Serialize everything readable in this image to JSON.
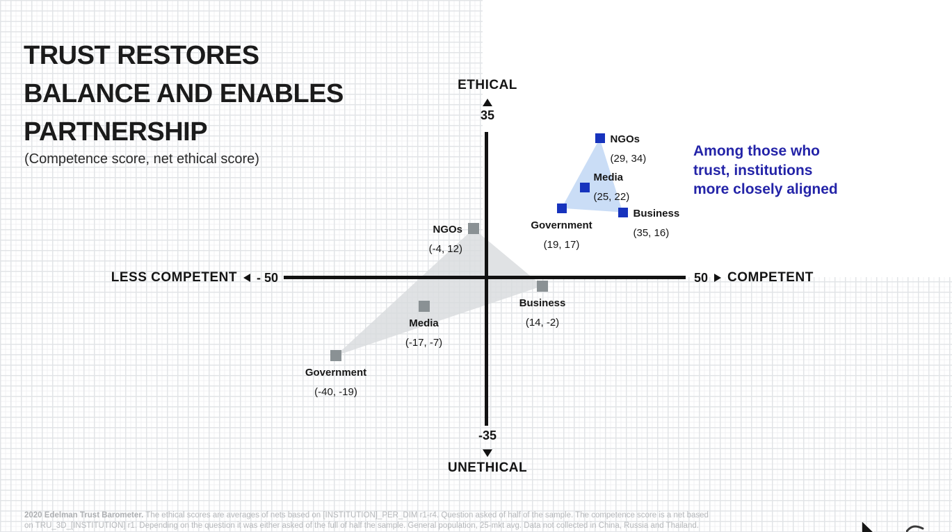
{
  "slide": {
    "title_lines": [
      "TRUST RESTORES",
      "BALANCE AND ENABLES",
      "PARTNERSHIP"
    ],
    "subtitle": "(Competence score, net ethical score)",
    "annotation": "Among those who\ntrust, institutions\nmore closely aligned",
    "footnote": {
      "bold_lead": "2020 Edelman Trust Barometer.",
      "line1_rest": " The ethical scores are averages of nets based on [INSTITUTION]_PER_DIM r1-r4. Question asked of half of the sample. The competence score is a net based",
      "line2": "on TRU_3D_[INSTITUTION] r1. Depending on the question it was either asked of the full of half the sample. General population, 25-mkt avg. Data not collected in China, Russia and Thailand."
    }
  },
  "chart_data": {
    "type": "scatter",
    "title": "TRUST RESTORES BALANCE AND ENABLES PARTNERSHIP",
    "subtitle": "(Competence score, net ethical score)",
    "xlabel": "competence score",
    "ylabel": "net ethical score",
    "xlim": [
      -50,
      50
    ],
    "ylim": [
      -35,
      35
    ],
    "grid": "graph-paper background",
    "legend_position": "none (annotation text identifies blue cluster)",
    "axes_labels": {
      "x_left_word": "LESS COMPETENT",
      "x_left_value": "- 50",
      "x_right_value": "50",
      "x_right_word": "COMPETENT",
      "y_top_word": "ETHICAL",
      "y_top_value": "35",
      "y_bottom_value": "-35",
      "y_bottom_word": "UNETHICAL"
    },
    "annotation": "Among those who trust, institutions more closely aligned",
    "series": [
      {
        "key": "gray",
        "name": "all-respondents-cluster",
        "marker_color": "#8a9194",
        "hull_fill": "#d8dbdd",
        "hull_opacity": 0.8,
        "marker_size": 16,
        "points": [
          {
            "label": "NGOs",
            "x": -4,
            "y": 12,
            "coords_text": "(-4, 12)",
            "label_placement": "left"
          },
          {
            "label": "Business",
            "x": 14,
            "y": -2,
            "coords_text": "(14, -2)",
            "label_placement": "below"
          },
          {
            "label": "Media",
            "x": -17,
            "y": -7,
            "coords_text": "(-17, -7)",
            "label_placement": "below"
          },
          {
            "label": "Government",
            "x": -40,
            "y": -19,
            "coords_text": "(-40, -19)",
            "label_placement": "below"
          }
        ],
        "hull_vertices": [
          "Government",
          "NGOs",
          "Business"
        ]
      },
      {
        "key": "blue",
        "name": "those-who-trust-cluster",
        "marker_color": "#1733bd",
        "hull_fill": "#c7dbf5",
        "hull_opacity": 0.95,
        "marker_size": 14,
        "points": [
          {
            "label": "NGOs",
            "x": 29,
            "y": 34,
            "coords_text": "(29, 34)",
            "label_placement": "right"
          },
          {
            "label": "Media",
            "x": 25,
            "y": 22,
            "coords_text": "(25, 22)",
            "label_placement": "above-right"
          },
          {
            "label": "Government",
            "x": 19,
            "y": 17,
            "coords_text": "(19, 17)",
            "label_placement": "below"
          },
          {
            "label": "Business",
            "x": 35,
            "y": 16,
            "coords_text": "(35, 16)",
            "label_placement": "right"
          }
        ],
        "hull_vertices": [
          "NGOs",
          "Government",
          "Business"
        ]
      }
    ],
    "colors": {
      "annotation_blue": "#2424a8",
      "axis_black": "#121212",
      "footnote_gray": "#b6b8bb"
    }
  }
}
